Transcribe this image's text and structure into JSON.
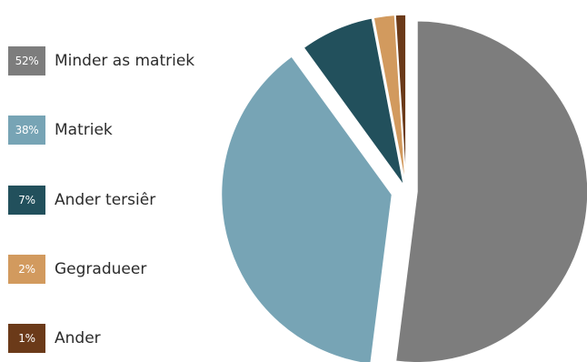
{
  "chart_data": {
    "type": "pie",
    "categories": [
      "Minder as matriek",
      "Matriek",
      "Ander tersiêr",
      "Gegradueer",
      "Ander"
    ],
    "values": [
      52,
      38,
      7,
      2,
      1
    ],
    "value_labels": [
      "52%",
      "38%",
      "7%",
      "2%",
      "1%"
    ],
    "colors": [
      "#7d7d7d",
      "#77a4b5",
      "#22505c",
      "#d29a5e",
      "#6b3a19"
    ],
    "legend_position": "left",
    "start": "top",
    "direction": "clockwise",
    "exploded": true
  },
  "legend": [
    {
      "badge": "52%",
      "label": "Minder as matriek",
      "color": "#7d7d7d"
    },
    {
      "badge": "38%",
      "label": "Matriek",
      "color": "#77a4b5"
    },
    {
      "badge": "7%",
      "label": "Ander tersiêr",
      "color": "#22505c"
    },
    {
      "badge": "2%",
      "label": "Gegradueer",
      "color": "#d29a5e"
    },
    {
      "badge": "1%",
      "label": "Ander",
      "color": "#6b3a19"
    }
  ]
}
